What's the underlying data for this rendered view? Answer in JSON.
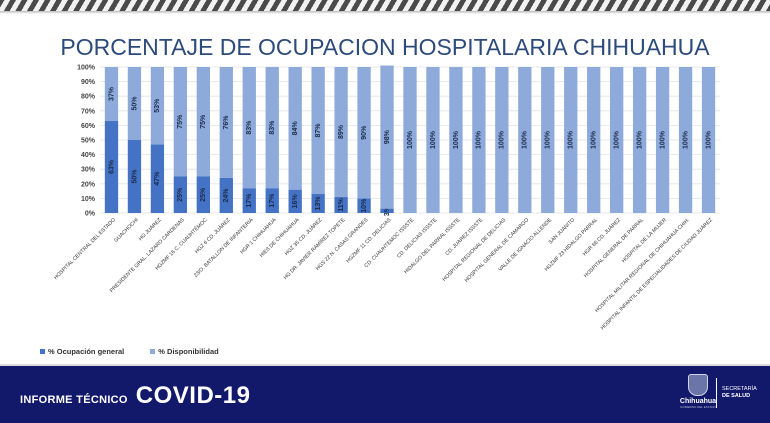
{
  "banner": {
    "report_label": "INFORME TÉCNICO",
    "report_title": "COVID-19",
    "logo_name": "Chihuahua",
    "logo_sub": "GOBIERNO DEL ESTADO",
    "secretaria_line1": "SECRETARÍA",
    "secretaria_line2": "DE SALUD"
  },
  "colors": {
    "occupancy": "#4472c4",
    "availability": "#8eaadb",
    "footer": "#13196a",
    "title": "#2c4a7a"
  },
  "chart_data": {
    "type": "bar",
    "stacked": true,
    "title": "PORCENTAJE DE OCUPACION HOSPITALARIA CHIHUAHUA",
    "xlabel": "",
    "ylabel": "",
    "ylim": [
      0,
      100
    ],
    "yticks": [
      "0%",
      "10%",
      "20%",
      "30%",
      "40%",
      "50%",
      "60%",
      "70%",
      "80%",
      "90%",
      "100%"
    ],
    "grid": true,
    "legend_position": "bottom-left",
    "categories": [
      "HOSPITAL CENTRAL DEL ESTADO",
      "GUACHOCHI",
      "HG JUÁREZ",
      "PRESIDENTE GRAL. LAZARO CARDENAS",
      "HGZMF 16 C. CUAUHTÉMOC",
      "HGZ 6 CD. JUÁREZ",
      "23/O. BATALLON DE INFANTERIA",
      "HGR 1 CHIHUAHUA",
      "HIES DE CHIHUAHUA",
      "HGZ 35 CD. JUÁREZ",
      "HG DR. JAVIER RAMÍREZ TOPETE",
      "HGS 22 N. CASAS GRANDES",
      "HGZMF 11 CD. DELICIAS",
      "CD. CUAUHTEMOC ISSSTE",
      "CD. DELICIAS ISSSTE",
      "HIDALGO DEL PARRAL ISSSTE",
      "CD. JUAREZ ISSSTE",
      "HOSPITAL REGIONAL DE DELICIAS",
      "HOSPITAL GENERAL DE CAMARGO",
      "VALLE DE IGNACIO ALLENDE",
      "SAN JUANITO",
      "HGZMF 23 HIDALGO PARRAL",
      "HGR 66 CD. JUÁREZ",
      "HOSPITAL GENERAL DE PARRAL",
      "HOSPITAL DE LA MUJER",
      "HOSPITAL MILITAR REGIONAL DE CHIHUAHUA CHIH.",
      "HOSPITAL INFANTIL DE ESPECIALIDADES DE CIUDAD JUÁREZ"
    ],
    "series": [
      {
        "name": "% Ocupación general",
        "color": "#4472c4",
        "values": [
          63,
          50,
          47,
          25,
          25,
          24,
          17,
          17,
          16,
          13,
          11,
          10,
          3,
          0,
          0,
          0,
          0,
          0,
          0,
          0,
          0,
          0,
          0,
          0,
          0,
          0,
          0
        ],
        "labels": [
          "63%",
          "50%",
          "47%",
          "25%",
          "25%",
          "24%",
          "17%",
          "17%",
          "16%",
          "13%",
          "11%",
          "10%",
          "3%",
          "",
          "",
          "",
          "",
          "",
          "",
          "",
          "",
          "",
          "",
          "",
          "",
          "",
          ""
        ]
      },
      {
        "name": "% Disponibilidad",
        "color": "#8eaadb",
        "values": [
          37,
          50,
          53,
          75,
          75,
          76,
          83,
          83,
          84,
          87,
          89,
          90,
          98,
          100,
          100,
          100,
          100,
          100,
          100,
          100,
          100,
          100,
          100,
          100,
          100,
          100,
          100
        ],
        "labels": [
          "37%",
          "50%",
          "53%",
          "75%",
          "75%",
          "76%",
          "83%",
          "83%",
          "84%",
          "87%",
          "89%",
          "90%",
          "98%",
          "100%",
          "100%",
          "100%",
          "100%",
          "100%",
          "100%",
          "100%",
          "100%",
          "100%",
          "100%",
          "100%",
          "100%",
          "100%",
          "100%"
        ]
      }
    ]
  }
}
